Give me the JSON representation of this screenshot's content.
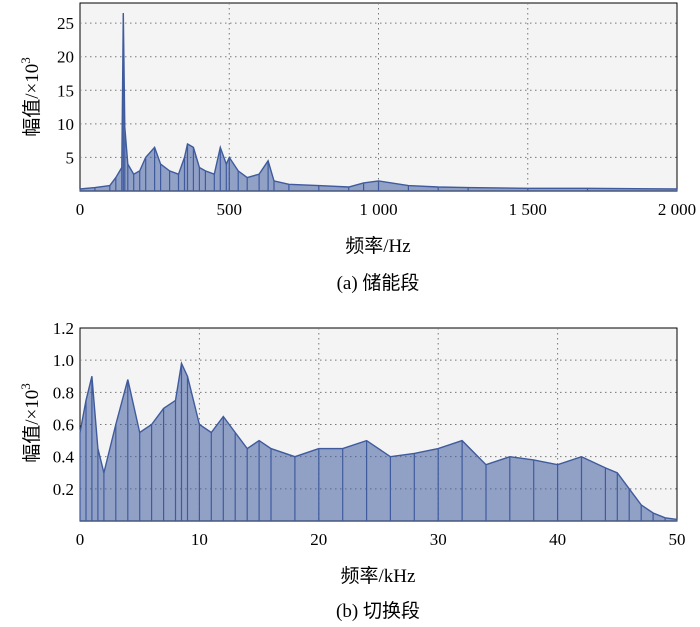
{
  "colors": {
    "series": "#3f5b9e",
    "plot_bg": "#f4f4f4",
    "grid": "#777777"
  },
  "chart_data": [
    {
      "type": "line",
      "caption": "(a) 储能段",
      "xlabel": "频率/Hz",
      "ylabel_main": "幅值/×10",
      "ylabel_sup": "3",
      "xlim": [
        0,
        2000
      ],
      "ylim": [
        0,
        28
      ],
      "xticks": [
        0,
        500,
        1000,
        1500,
        2000
      ],
      "xtick_labels": [
        "0",
        "500",
        "1 000",
        "1 500",
        "2 000"
      ],
      "yticks": [
        5,
        10,
        15,
        20,
        25
      ],
      "ytick_labels": [
        "5",
        "10",
        "15",
        "20",
        "25"
      ],
      "grid": true,
      "series": [
        {
          "x": [
            0,
            50,
            100,
            120,
            140,
            145,
            150,
            160,
            180,
            200,
            220,
            250,
            270,
            300,
            330,
            350,
            360,
            380,
            400,
            420,
            450,
            470,
            490,
            500,
            530,
            560,
            600,
            630,
            650,
            700,
            800,
            900,
            950,
            1000,
            1100,
            1200,
            1300,
            1500,
            1700,
            2000
          ],
          "y": [
            0.3,
            0.5,
            0.8,
            2.0,
            3.5,
            26.5,
            9.5,
            4.0,
            2.5,
            3.0,
            5.0,
            6.5,
            4.0,
            3.0,
            2.5,
            5.0,
            7.0,
            6.5,
            3.5,
            3.0,
            2.5,
            6.5,
            4.0,
            5.0,
            3.0,
            2.0,
            2.5,
            4.5,
            1.5,
            1.0,
            0.8,
            0.6,
            1.2,
            1.5,
            0.8,
            0.6,
            0.5,
            0.4,
            0.4,
            0.3
          ]
        }
      ]
    },
    {
      "type": "line",
      "caption": "(b) 切换段",
      "xlabel": "频率/kHz",
      "ylabel_main": "幅值/×10",
      "ylabel_sup": "3",
      "xlim": [
        0,
        50
      ],
      "ylim": [
        0,
        1.2
      ],
      "xticks": [
        0,
        10,
        20,
        30,
        40,
        50
      ],
      "xtick_labels": [
        "0",
        "10",
        "20",
        "30",
        "40",
        "50"
      ],
      "yticks": [
        0.2,
        0.4,
        0.6,
        0.8,
        1.0,
        1.2
      ],
      "ytick_labels": [
        "0.2",
        "0.4",
        "0.6",
        "0.8",
        "1.0",
        "1.2"
      ],
      "grid": true,
      "series": [
        {
          "x": [
            0,
            0.5,
            1,
            1.5,
            2,
            3,
            4,
            5,
            6,
            7,
            8,
            8.5,
            9,
            10,
            11,
            12,
            13,
            14,
            15,
            16,
            18,
            20,
            22,
            24,
            26,
            28,
            30,
            32,
            34,
            36,
            38,
            40,
            42,
            44,
            45,
            46,
            47,
            48,
            49,
            50
          ],
          "y": [
            0.55,
            0.75,
            0.9,
            0.45,
            0.3,
            0.6,
            0.88,
            0.55,
            0.6,
            0.7,
            0.75,
            0.98,
            0.9,
            0.6,
            0.55,
            0.65,
            0.55,
            0.45,
            0.5,
            0.45,
            0.4,
            0.45,
            0.45,
            0.5,
            0.4,
            0.42,
            0.45,
            0.5,
            0.35,
            0.4,
            0.38,
            0.35,
            0.4,
            0.33,
            0.3,
            0.2,
            0.1,
            0.05,
            0.02,
            0.01
          ]
        }
      ]
    }
  ]
}
